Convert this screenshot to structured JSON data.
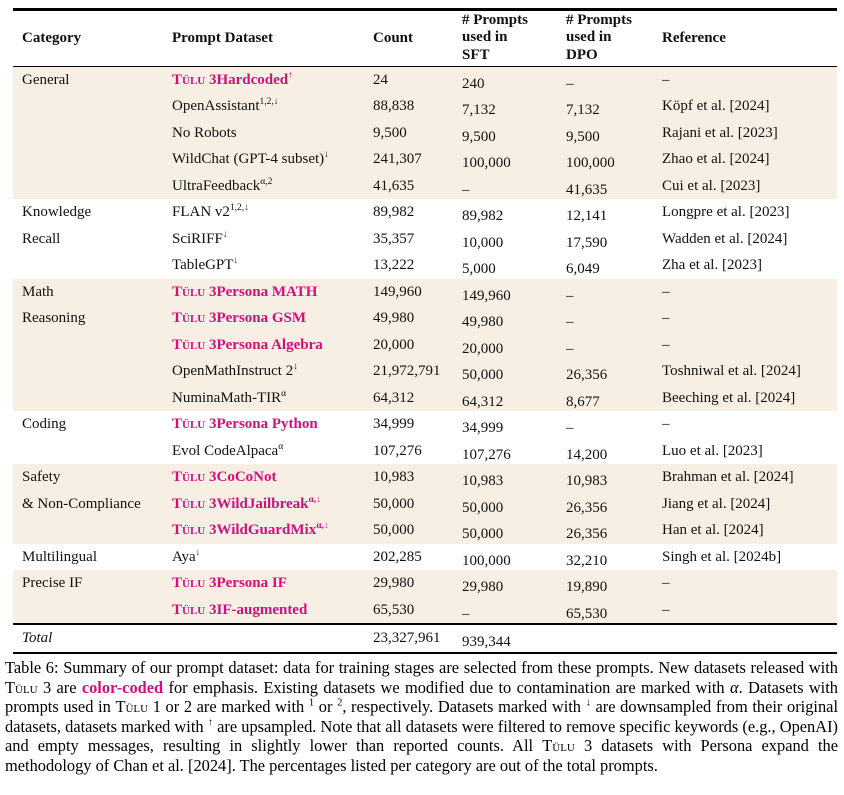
{
  "accent_color": "#d30f7c",
  "group_background": "#f8efe4",
  "table": {
    "columns": {
      "category": "Category",
      "dataset": "Prompt Dataset",
      "count": "Count",
      "sft_lines": [
        "# Prompts",
        "used in",
        "SFT"
      ],
      "dpo_lines": [
        "# Prompts",
        "used in",
        "DPO"
      ],
      "reference": "Reference"
    },
    "groups": [
      {
        "category_lines": [
          "General"
        ],
        "shaded": true,
        "rows": [
          {
            "brand": "Tülu 3",
            "dataset": "Hardcoded",
            "sup": "↑",
            "count": "24",
            "sft": "240",
            "dpo": "–",
            "ref": "–"
          },
          {
            "dataset": "OpenAssistant",
            "sup": "1,2,↓",
            "count": "88,838",
            "sft": "7,132",
            "dpo": "7,132",
            "ref": "Köpf et al. [2024]"
          },
          {
            "dataset": "No Robots",
            "count": "9,500",
            "sft": "9,500",
            "dpo": "9,500",
            "ref": "Rajani et al. [2023]"
          },
          {
            "dataset": "WildChat (GPT-4 subset)",
            "sup": "↓",
            "count": "241,307",
            "sft": "100,000",
            "dpo": "100,000",
            "ref": "Zhao et al. [2024]"
          },
          {
            "dataset": "UltraFeedback",
            "sup": "α,2",
            "count": "41,635",
            "sft": "–",
            "dpo": "41,635",
            "ref": "Cui et al. [2023]"
          }
        ]
      },
      {
        "category_lines": [
          "Knowledge",
          "Recall"
        ],
        "shaded": false,
        "rows": [
          {
            "dataset": "FLAN v2",
            "sup": "1,2,↓",
            "count": "89,982",
            "sft": "89,982",
            "dpo": "12,141",
            "ref": "Longpre et al. [2023]"
          },
          {
            "dataset": "SciRIFF",
            "sup": "↓",
            "count": "35,357",
            "sft": "10,000",
            "dpo": "17,590",
            "ref": "Wadden et al. [2024]"
          },
          {
            "dataset": "TableGPT",
            "sup": "↓",
            "count": "13,222",
            "sft": "5,000",
            "dpo": "6,049",
            "ref": "Zha et al. [2023]"
          }
        ]
      },
      {
        "category_lines": [
          "Math",
          "Reasoning"
        ],
        "shaded": true,
        "rows": [
          {
            "brand": "Tülu 3",
            "dataset": "Persona MATH",
            "count": "149,960",
            "sft": "149,960",
            "dpo": "–",
            "ref": "–"
          },
          {
            "brand": "Tülu 3",
            "dataset": "Persona GSM",
            "count": "49,980",
            "sft": "49,980",
            "dpo": "–",
            "ref": "–"
          },
          {
            "brand": "Tülu 3",
            "dataset": "Persona Algebra",
            "count": "20,000",
            "sft": "20,000",
            "dpo": "–",
            "ref": "–"
          },
          {
            "dataset": "OpenMathInstruct 2",
            "sup": "↓",
            "count": "21,972,791",
            "sft": "50,000",
            "dpo": "26,356",
            "ref": "Toshniwal et al. [2024]"
          },
          {
            "dataset": "NuminaMath-TIR",
            "sup": "α",
            "count": "64,312",
            "sft": "64,312",
            "dpo": "8,677",
            "ref": "Beeching et al. [2024]"
          }
        ]
      },
      {
        "category_lines": [
          "Coding"
        ],
        "shaded": false,
        "rows": [
          {
            "brand": "Tülu 3",
            "dataset": "Persona Python",
            "count": "34,999",
            "sft": "34,999",
            "dpo": "–",
            "ref": "–"
          },
          {
            "dataset": "Evol CodeAlpaca",
            "sup": "α",
            "count": "107,276",
            "sft": "107,276",
            "dpo": "14,200",
            "ref": "Luo et al. [2023]"
          }
        ]
      },
      {
        "category_lines": [
          "Safety",
          "& Non-Compliance"
        ],
        "shaded": true,
        "rows": [
          {
            "brand": "Tülu 3",
            "dataset": "CoCoNot",
            "count": "10,983",
            "sft": "10,983",
            "dpo": "10,983",
            "ref": "Brahman et al. [2024]"
          },
          {
            "brand": "Tülu 3",
            "dataset": "WildJailbreak",
            "sup": "α,↓",
            "count": "50,000",
            "sft": "50,000",
            "dpo": "26,356",
            "ref": "Jiang et al. [2024]"
          },
          {
            "brand": "Tülu 3",
            "dataset": "WildGuardMix",
            "sup": "α,↓",
            "count": "50,000",
            "sft": "50,000",
            "dpo": "26,356",
            "ref": "Han et al. [2024]"
          }
        ]
      },
      {
        "category_lines": [
          "Multilingual"
        ],
        "shaded": false,
        "rows": [
          {
            "dataset": "Aya",
            "sup": "↓",
            "count": "202,285",
            "sft": "100,000",
            "dpo": "32,210",
            "ref": "Singh et al. [2024b]"
          }
        ]
      },
      {
        "category_lines": [
          "Precise IF"
        ],
        "shaded": true,
        "rows": [
          {
            "brand": "Tülu 3",
            "dataset": "Persona IF",
            "count": "29,980",
            "sft": "29,980",
            "dpo": "19,890",
            "ref": "–"
          },
          {
            "brand": "Tülu 3",
            "dataset": "IF-augmented",
            "count": "65,530",
            "sft": "–",
            "dpo": "65,530",
            "ref": "–"
          }
        ]
      }
    ],
    "total": {
      "label": "Total",
      "count": "23,327,961",
      "sft": "939,344"
    }
  },
  "caption": {
    "segments": [
      {
        "t": "Table 6: Summary of our prompt dataset: data for training stages are selected from these prompts. New datasets released with "
      },
      {
        "t": "Tülu",
        "sc": true
      },
      {
        "t": " 3 are "
      },
      {
        "t": "color-coded",
        "accent": true
      },
      {
        "t": " for emphasis. Existing datasets we modified due to contamination are marked with "
      },
      {
        "t": "α",
        "italic": true
      },
      {
        "t": ". Datasets with prompts used in "
      },
      {
        "t": "Tülu",
        "sc": true
      },
      {
        "t": " 1 or 2 are marked with "
      },
      {
        "t": "1",
        "sup": true
      },
      {
        "t": " or "
      },
      {
        "t": "2",
        "sup": true
      },
      {
        "t": ", respectively. Datasets marked with "
      },
      {
        "t": "↓",
        "sup": true
      },
      {
        "t": " are downsampled from their original datasets, datasets marked with "
      },
      {
        "t": "↑",
        "sup": true
      },
      {
        "t": " are upsampled. Note that all datasets were filtered to remove specific keywords (e.g., OpenAI) and empty messages, resulting in slightly lower than reported counts. All "
      },
      {
        "t": "Tülu",
        "sc": true
      },
      {
        "t": " 3 datasets with Persona expand the methodology of Chan et al. [2024]. The percentages listed per category are out of the total prompts."
      }
    ]
  }
}
